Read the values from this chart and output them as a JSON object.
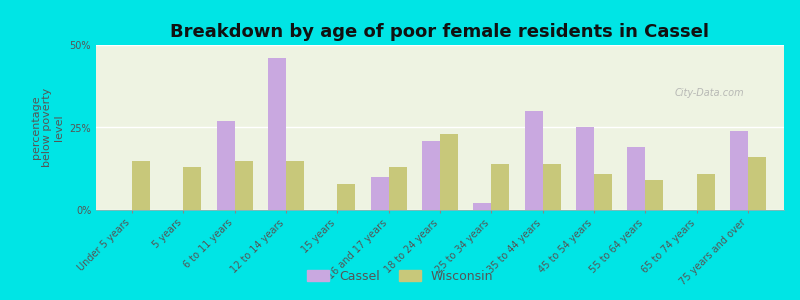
{
  "title": "Breakdown by age of poor female residents in Cassel",
  "ylabel": "percentage\nbelow poverty\nlevel",
  "categories": [
    "Under 5 years",
    "5 years",
    "6 to 11 years",
    "12 to 14 years",
    "15 years",
    "16 and 17 years",
    "18 to 24 years",
    "25 to 34 years",
    "35 to 44 years",
    "45 to 54 years",
    "55 to 64 years",
    "65 to 74 years",
    "75 years and over"
  ],
  "cassel": [
    0,
    0,
    27,
    46,
    0,
    10,
    21,
    2,
    30,
    25,
    19,
    0,
    24
  ],
  "wisconsin": [
    15,
    13,
    15,
    15,
    8,
    13,
    23,
    14,
    14,
    11,
    9,
    11,
    16
  ],
  "cassel_color": "#c9a8e0",
  "wisconsin_color": "#c8c87a",
  "plot_bg": "#eef3e2",
  "outer_bg": "#00e5e5",
  "ylim": [
    0,
    50
  ],
  "yticks": [
    0,
    25,
    50
  ],
  "ytick_labels": [
    "0%",
    "25%",
    "50%"
  ],
  "bar_width": 0.35,
  "title_fontsize": 13,
  "axis_label_fontsize": 8,
  "tick_fontsize": 7,
  "legend_cassel": "Cassel",
  "legend_wisconsin": "Wisconsin",
  "watermark": "City-Data.com"
}
